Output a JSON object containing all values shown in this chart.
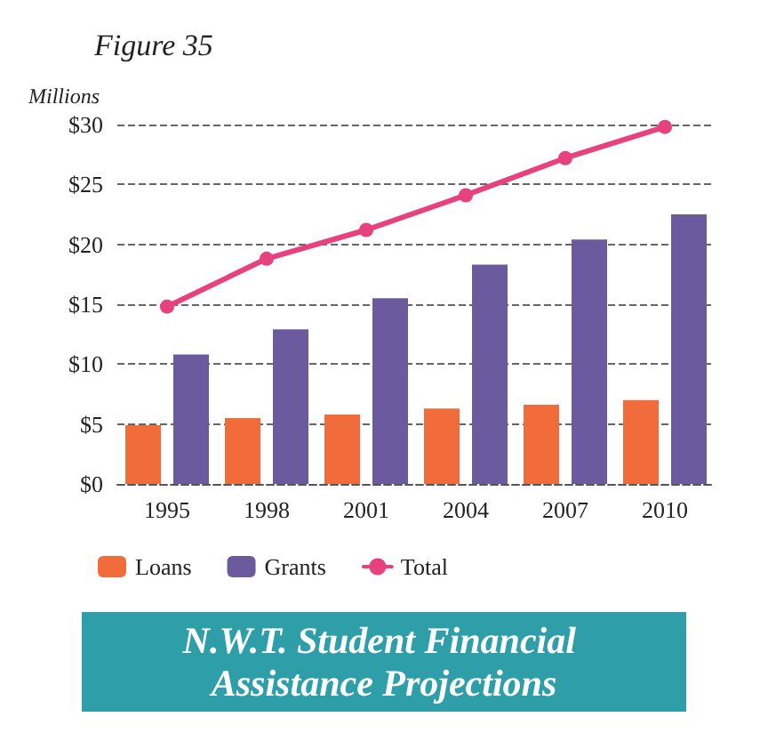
{
  "chart_data": {
    "type": "bar",
    "title": "N.W.T. Student Financial Assistance Projections",
    "subtitle": "Figure 35",
    "ylabel": "Millions",
    "categories": [
      "1995",
      "1998",
      "2001",
      "2004",
      "2007",
      "2010"
    ],
    "series": [
      {
        "name": "Loans",
        "color": "#f26b3a",
        "values": [
          4.9,
          5.5,
          5.8,
          6.3,
          6.6,
          7.0
        ]
      },
      {
        "name": "Grants",
        "color": "#6b5b9e",
        "values": [
          10.8,
          12.9,
          15.5,
          18.3,
          20.4,
          22.5
        ]
      },
      {
        "name": "Total",
        "type": "line",
        "color": "#e8417f",
        "values": [
          14.8,
          18.8,
          21.2,
          24.1,
          27.2,
          29.8
        ]
      }
    ],
    "ylim": [
      0,
      30
    ],
    "yticks": [
      {
        "value": 0,
        "label": "$0"
      },
      {
        "value": 5,
        "label": "$5"
      },
      {
        "value": 10,
        "label": "$10"
      },
      {
        "value": 15,
        "label": "$15"
      },
      {
        "value": 20,
        "label": "$20"
      },
      {
        "value": 25,
        "label": "$25"
      },
      {
        "value": 30,
        "label": "$30"
      }
    ],
    "grid": "y",
    "legend": "bottom left",
    "marker": "circle",
    "line_style": "solid"
  }
}
